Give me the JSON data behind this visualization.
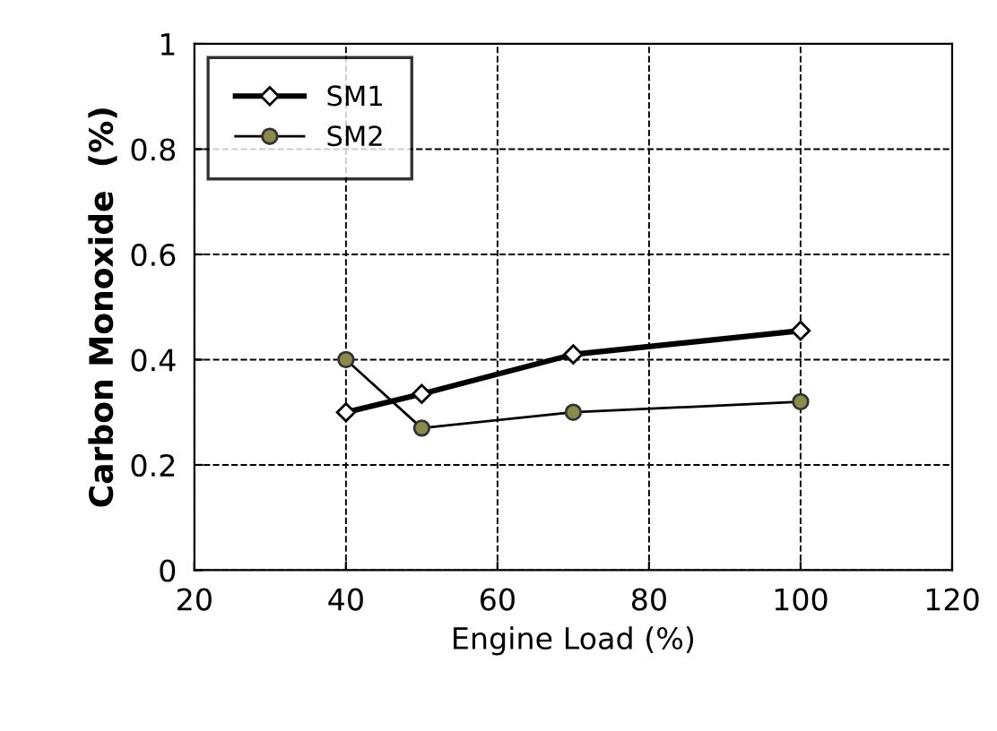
{
  "chart_data": {
    "type": "line",
    "xlabel": "Engine Load (%)",
    "ylabel": "Carbon Monoxide  (%)",
    "xlim": [
      20,
      120
    ],
    "xticks": [
      20,
      40,
      60,
      80,
      100,
      120
    ],
    "ylim": [
      0,
      1
    ],
    "yticks": [
      0,
      0.2,
      0.4,
      0.6,
      0.8,
      1
    ],
    "grid": true,
    "legend": "top left",
    "line_style": "solid",
    "series": [
      {
        "name": "SM1",
        "color": "#000000",
        "x": [
          40,
          50,
          70,
          100
        ],
        "values": [
          0.3,
          0.335,
          0.41,
          0.455
        ],
        "marker": "diamond"
      },
      {
        "name": "SM2",
        "color": "#8b8a4e",
        "x": [
          40,
          50,
          70,
          100
        ],
        "values": [
          0.4,
          0.27,
          0.3,
          0.32
        ],
        "marker": "circle"
      }
    ]
  }
}
